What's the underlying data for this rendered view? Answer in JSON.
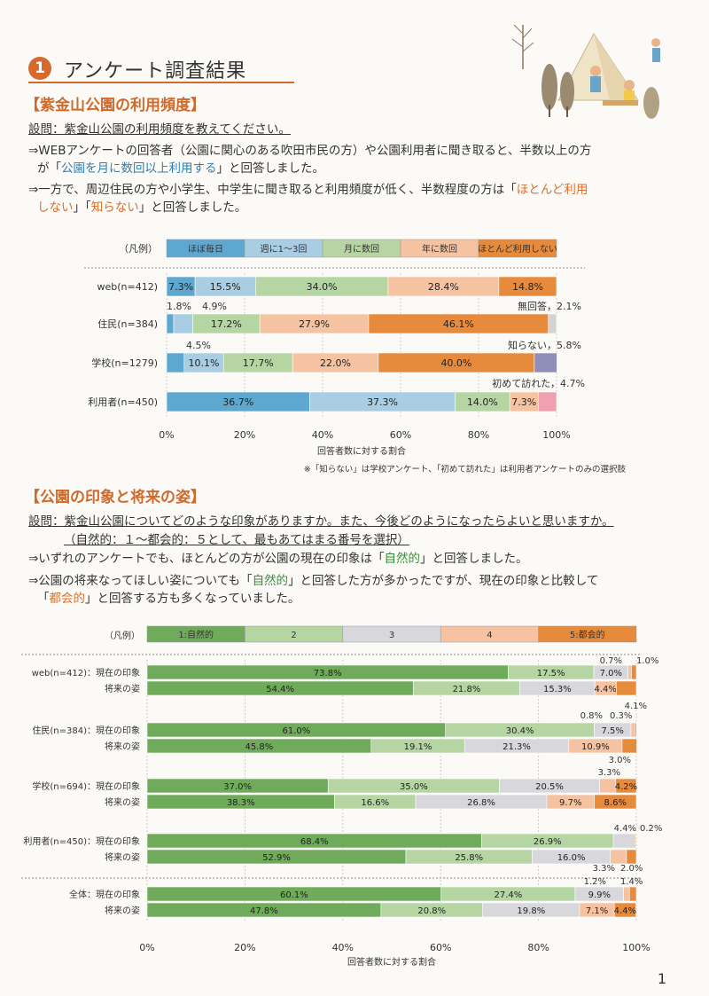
{
  "section": {
    "number": "1",
    "title": "アンケート調査結果"
  },
  "part1": {
    "heading": "【紫金山公園の利用頻度】",
    "question": "設問：紫金山公園の利用頻度を教えてください。",
    "p1a": "⇒WEBアンケートの回答者（公園に関心のある吹田市民の方）や公園利用者に聞き取ると、半数以上の方",
    "p1b_pre": "が「",
    "p1b_hl": "公園を月に数回以上利用する",
    "p1b_post": "」と回答しました。",
    "p2a_pre": "⇒一方で、周辺住民の方や小学生、中学生に聞き取ると利用頻度が低く、半数程度の方は「",
    "p2a_hl": "ほとんど利用",
    "p2b_hl": "しない",
    "p2b_mid": "」「",
    "p2b_hl2": "知らない",
    "p2b_post": "」と回答しました。"
  },
  "part2": {
    "heading": "【公園の印象と将来の姿】",
    "q1": "設問：紫金山公園についてどのような印象がありますか。また、今後どのようになったらよいと思いますか。",
    "q2": "（自然的：１～都会的：５として、最もあてはまる番号を選択）",
    "p1_pre": "⇒いずれのアンケートでも、ほとんどの方が公園の現在の印象は「",
    "p1_hl": "自然的",
    "p1_post": "」と回答しました。",
    "p2a_pre": "⇒公園の将来なってほしい姿についても「",
    "p2a_hl": "自然的",
    "p2a_post": "」と回答した方が多かったですが、現在の印象と比較して",
    "p2b_pre": "「",
    "p2b_hl": "都会的",
    "p2b_post": "」と回答する方も多くなっていました。"
  },
  "chart_data": [
    {
      "type": "bar",
      "stacked": true,
      "orientation": "horizontal",
      "legend_label": "（凡例）",
      "legend": [
        "ほぼ毎日",
        "週に1～3回",
        "月に数回",
        "年に数回",
        "ほとんど利用しない"
      ],
      "extra_categories": [
        "知らない",
        "初めて訪れた",
        "無回答"
      ],
      "colors": [
        "#5ea7cf",
        "#a9cde3",
        "#b5d5a3",
        "#f5c3a2",
        "#e68a3c",
        "#8e8eb8",
        "#f0a0b0",
        "#d3d3d3"
      ],
      "rows": [
        {
          "label": "web(n=412)",
          "values": [
            7.3,
            15.5,
            34.0,
            28.4,
            14.8
          ],
          "texts": [
            "7.3%",
            "15.5%",
            "34.0%",
            "28.4%",
            "14.8%"
          ]
        },
        {
          "label": "住民(n=384)",
          "values": [
            1.8,
            4.9,
            17.2,
            27.9,
            46.1,
            0,
            0,
            2.1
          ],
          "texts": [
            "",
            "",
            "17.2%",
            "27.9%",
            "46.1%",
            "",
            "",
            ""
          ]
        },
        {
          "label": "学校(n=1279)",
          "values": [
            4.5,
            10.1,
            17.7,
            22.0,
            40.0,
            5.8
          ],
          "texts": [
            "",
            "10.1%",
            "17.7%",
            "22.0%",
            "40.0%",
            ""
          ]
        },
        {
          "label": "利用者(n=450)",
          "values": [
            36.7,
            37.3,
            14.0,
            7.3,
            0,
            0,
            4.7
          ],
          "texts": [
            "36.7%",
            "37.3%",
            "14.0%",
            "7.3%",
            "",
            "",
            ""
          ]
        }
      ],
      "annotations": [
        "1.8%",
        "4.9%",
        "無回答，2.1%",
        "4.5%",
        "知らない，5.8%",
        "初めて訪れた，4.7%"
      ],
      "xticks": [
        "0%",
        "20%",
        "40%",
        "60%",
        "80%",
        "100%"
      ],
      "xlabel": "回答者数に対する割合",
      "note": "※「知らない」は学校アンケート、「初めて訪れた」は利用者アンケートのみの選択肢",
      "xlim": [
        0,
        100
      ]
    },
    {
      "type": "bar",
      "stacked": true,
      "orientation": "horizontal",
      "legend_label": "（凡例）",
      "legend": [
        "1:自然的",
        "2",
        "3",
        "4",
        "5:都会的"
      ],
      "colors": [
        "#6fab5a",
        "#b5d5a3",
        "#d8d8dc",
        "#f5c3a2",
        "#e68a3c"
      ],
      "groups": [
        {
          "label": "web(n=412)：現在の印象",
          "sub": "将来の姿",
          "now": [
            73.8,
            17.5,
            7.0,
            0.7,
            1.0
          ],
          "future": [
            54.4,
            21.8,
            15.3,
            4.4,
            4.1
          ],
          "now_texts": [
            "73.8%",
            "17.5%",
            "7.0%",
            "",
            ""
          ],
          "future_texts": [
            "54.4%",
            "21.8%",
            "15.3%",
            "4.4%",
            ""
          ]
        },
        {
          "label": "住民(n=384)：現在の印象",
          "sub": "将来の姿",
          "now": [
            61.0,
            30.4,
            7.5,
            0.8,
            0.3
          ],
          "future": [
            45.8,
            19.1,
            21.3,
            10.9,
            3.0
          ],
          "now_texts": [
            "61.0%",
            "30.4%",
            "7.5%",
            "",
            ""
          ],
          "future_texts": [
            "45.8%",
            "19.1%",
            "21.3%",
            "10.9%",
            ""
          ]
        },
        {
          "label": "学校(n=694)：現在の印象",
          "sub": "将来の姿",
          "now": [
            37.0,
            35.0,
            20.5,
            3.3,
            4.2
          ],
          "future": [
            38.3,
            16.6,
            26.8,
            9.7,
            8.6
          ],
          "now_texts": [
            "37.0%",
            "35.0%",
            "20.5%",
            "",
            "4.2%"
          ],
          "future_texts": [
            "38.3%",
            "16.6%",
            "26.8%",
            "9.7%",
            "8.6%"
          ]
        },
        {
          "label": "利用者(n=450)：現在の印象",
          "sub": "将来の姿",
          "now": [
            68.4,
            26.9,
            4.4,
            0.0,
            0.2
          ],
          "future": [
            52.9,
            25.8,
            16.0,
            3.3,
            2.0
          ],
          "now_texts": [
            "68.4%",
            "26.9%",
            "",
            "",
            ""
          ],
          "future_texts": [
            "52.9%",
            "25.8%",
            "16.0%",
            "",
            ""
          ]
        },
        {
          "label": "全体：現在の印象",
          "sub": "将来の姿",
          "now": [
            60.1,
            27.4,
            9.9,
            1.2,
            1.4
          ],
          "future": [
            47.8,
            20.8,
            19.8,
            7.1,
            4.4
          ],
          "now_texts": [
            "60.1%",
            "27.4%",
            "9.9%",
            "",
            ""
          ],
          "future_texts": [
            "47.8%",
            "20.8%",
            "19.8%",
            "7.1%",
            "4.4%"
          ]
        }
      ],
      "annotations": [
        "0.7%",
        "1.0%",
        "4.1%",
        "0.8%",
        "0.3%",
        "3.0%",
        "3.3%",
        "4.4%",
        "0.2%",
        "3.3%",
        "2.0%",
        "1.2%",
        "1.4%"
      ],
      "xticks": [
        "0%",
        "20%",
        "40%",
        "60%",
        "80%",
        "100%"
      ],
      "xlabel": "回答者数に対する割合",
      "xlim": [
        0,
        100
      ]
    }
  ],
  "page_number": "1"
}
